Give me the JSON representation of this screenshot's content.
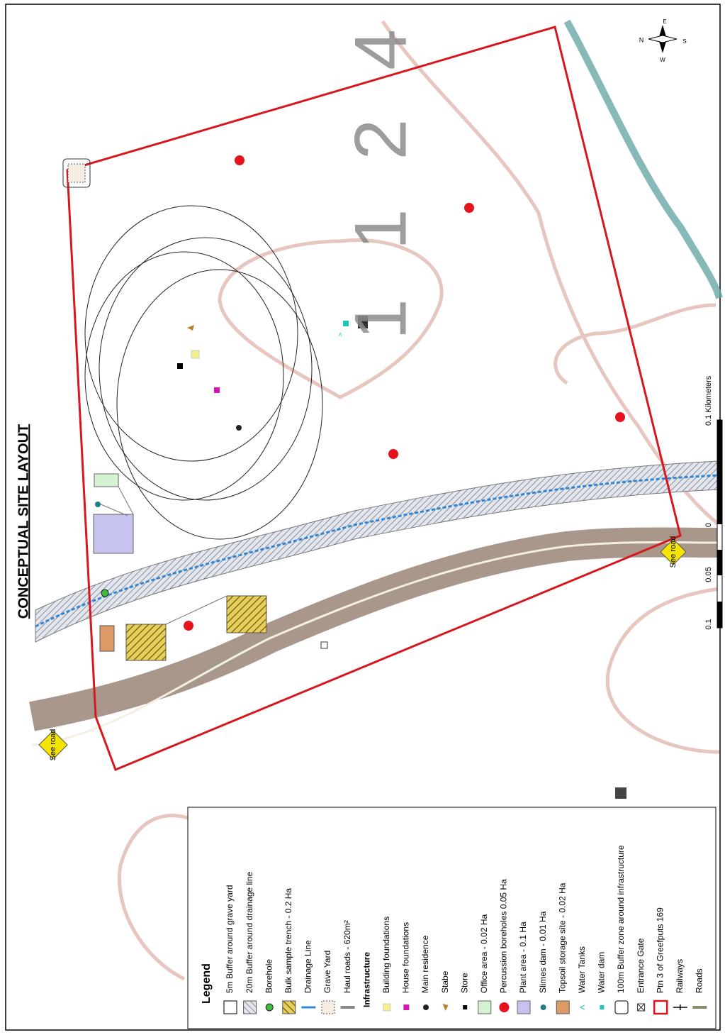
{
  "title": "CONCEPTUAL SITE LAYOUT",
  "map_labels": {
    "farm_number": "1 1 2 4",
    "road_signs": [
      "See road",
      "See road"
    ]
  },
  "compass": {
    "north": "N",
    "east": "E",
    "south": "S",
    "west": "W"
  },
  "scale_bar": {
    "labels": [
      "0.1",
      "0.05",
      "0",
      "0.1 Kilometers"
    ]
  },
  "legend": {
    "title": "Legend",
    "items": [
      "5m Buffer around grave yard",
      "20m Buffer around drainage line",
      "Borehole",
      "Bulk sample trench - 0.2 Ha",
      "Drainage Line",
      "Grave Yard",
      "Haul roads - 620m²",
      "Infrastructure",
      "Building foundations",
      "House foundations",
      "Main residence",
      "Stabe",
      "Store",
      "Office area - 0.02 Ha",
      "Percussion boreholes 0.05 Ha",
      "Plant area - 0.1 Ha",
      "Slimes dam - 0.01 Ha",
      "Topsoil storage site - 0.02 Ha",
      "Water Tanks",
      "Water dam",
      "100m Buffer zone around infrastructure",
      "Entrance Gate",
      "Ptn 3 of Greefputs 169",
      "Railways",
      "Roads"
    ]
  }
}
